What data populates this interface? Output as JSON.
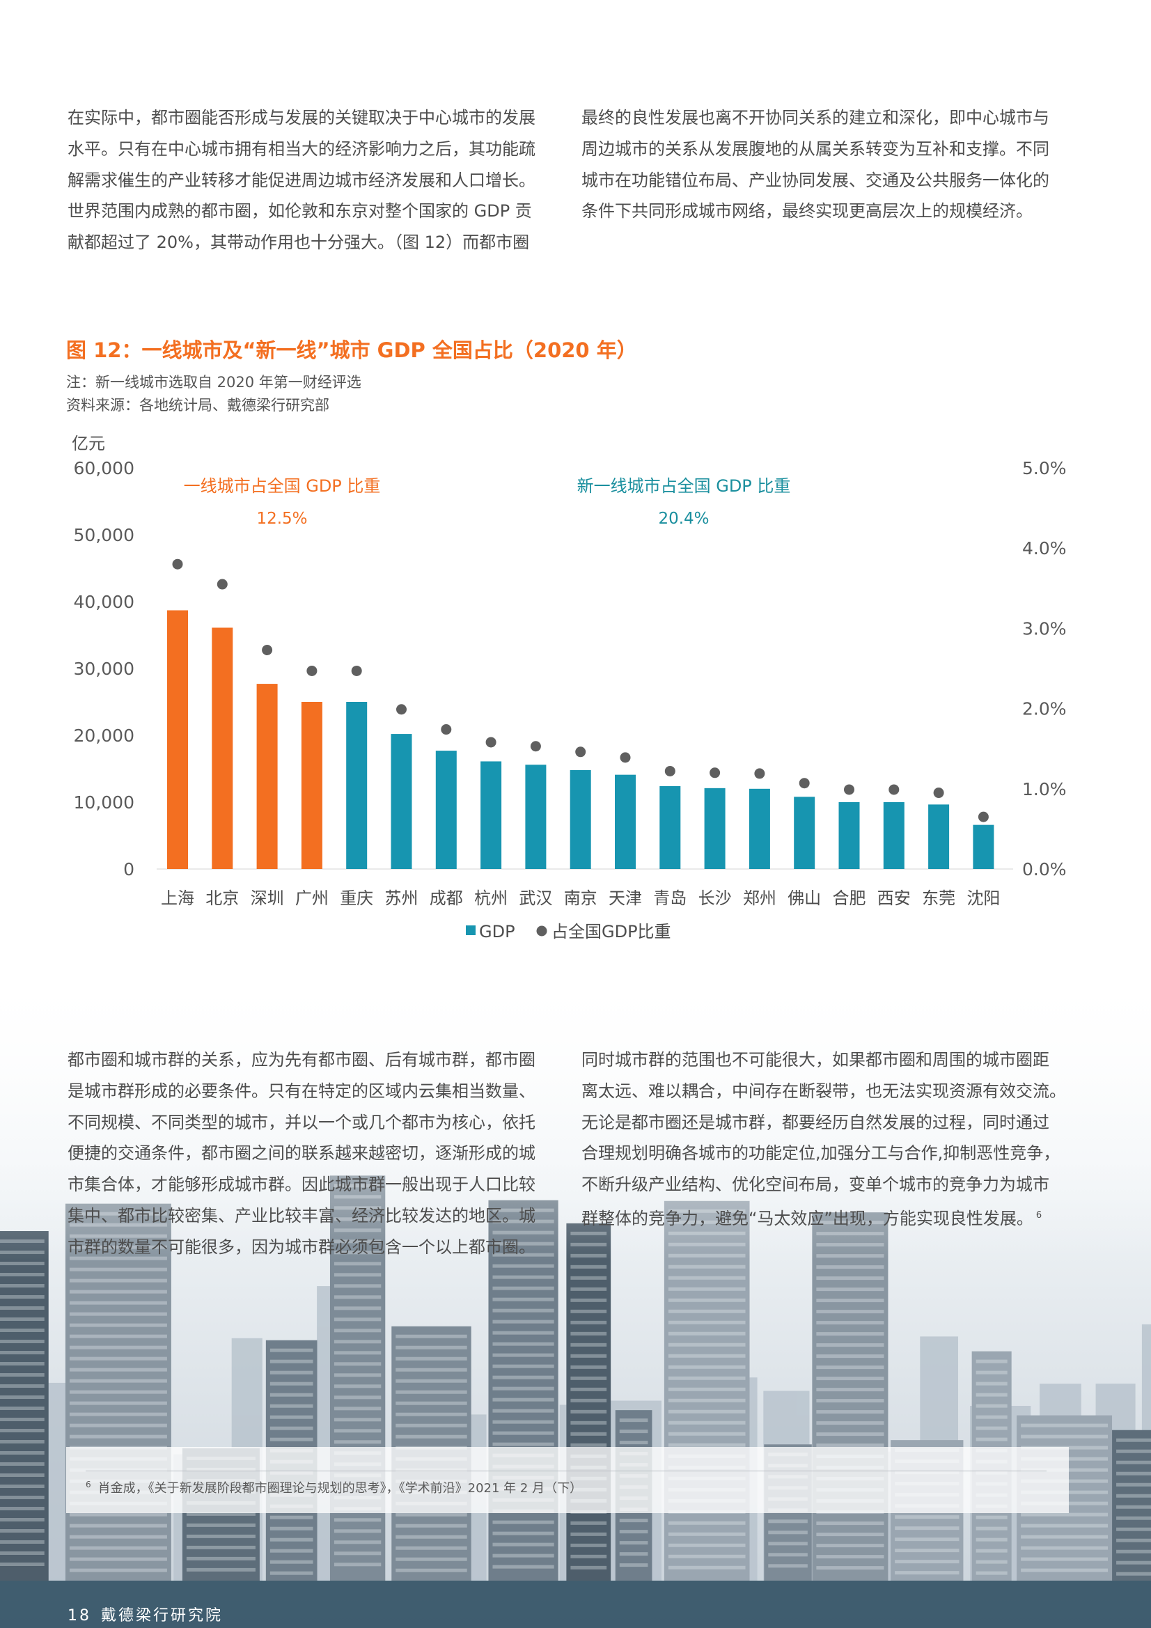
{
  "paragraphs": {
    "p1": [
      "在实际中，都市圈能否形成与发展的关键取决于中心城市的发展",
      "水平。只有在中心城市拥有相当大的经济影响力之后，其功能疏",
      "解需求催生的产业转移才能促进周边城市经济发展和人口增长。",
      "世界范围内成熟的都市圈，如伦敦和东京对整个国家的 GDP 贡",
      "献都超过了 20%，其带动作用也十分强大。（图 12）而都市圈"
    ],
    "p2": [
      "最终的良性发展也离不开协同关系的建立和深化，即中心城市与",
      "周边城市的关系从发展腹地的从属关系转变为互补和支撑。不同",
      "城市在功能错位布局、产业协同发展、交通及公共服务一体化的",
      "条件下共同形成城市网络，最终实现更高层次上的规模经济。"
    ],
    "p3": [
      "都市圈和城市群的关系，应为先有都市圈、后有城市群，都市圈",
      "是城市群形成的必要条件。只有在特定的区域内云集相当数量、",
      "不同规模、不同类型的城市，并以一个或几个都市为核心，依托",
      "便捷的交通条件，都市圈之间的联系越来越密切，逐渐形成的城",
      "市集合体，才能够形成城市群。因此城市群一般出现于人口比较",
      "集中、都市比较密集、产业比较丰富、经济比较发达的地区。城",
      "市群的数量不可能很多，因为城市群必须包含一个以上都市圈。"
    ],
    "p4": [
      "同时城市群的范围也不可能很大，如果都市圈和周围的城市圈距",
      "离太远、难以耦合，中间存在断裂带，也无法实现资源有效交流。",
      "无论是都市圈还是城市群，都要经历自然发展的过程，同时通过",
      "合理规划明确各城市的功能定位,加强分工与合作,抑制恶性竞争，",
      "不断升级产业结构、优化空间布局，变单个城市的竞争力为城市",
      "群整体的竞争力，避免“马太效应”出现，方能实现良性发展。"
    ],
    "p4_footnote_ref": "6"
  },
  "figure": {
    "title": "图 12：一线城市及“新一线”城市 GDP 全国占比（2020 年）",
    "note": "注：新一线城市选取自 2020 年第一财经评选",
    "source": "资料来源：各地统计局、戴德梁行研究部"
  },
  "chart_data": {
    "type": "bar",
    "categories": [
      "上海",
      "北京",
      "深圳",
      "广州",
      "重庆",
      "苏州",
      "成都",
      "杭州",
      "武汉",
      "南京",
      "天津",
      "青岛",
      "长沙",
      "郑州",
      "佛山",
      "合肥",
      "西安",
      "东莞",
      "沈阳"
    ],
    "tier": [
      "first",
      "first",
      "first",
      "first",
      "new",
      "new",
      "new",
      "new",
      "new",
      "new",
      "new",
      "new",
      "new",
      "new",
      "new",
      "new",
      "new",
      "new",
      "new"
    ],
    "series": [
      {
        "name": "GDP",
        "axis": "left",
        "kind": "bar",
        "values": [
          38700,
          36100,
          27700,
          25000,
          25000,
          20200,
          17700,
          16100,
          15600,
          14800,
          14100,
          12400,
          12100,
          12000,
          10800,
          10000,
          10000,
          9650,
          6600
        ]
      },
      {
        "name": "占全国GDP比重",
        "axis": "right",
        "kind": "dot",
        "values": [
          3.8,
          3.55,
          2.73,
          2.47,
          2.47,
          1.99,
          1.74,
          1.58,
          1.53,
          1.46,
          1.39,
          1.22,
          1.2,
          1.19,
          1.07,
          0.99,
          0.99,
          0.95,
          0.65
        ]
      }
    ],
    "ylabel": "亿元",
    "ylim": [
      0,
      60000
    ],
    "yticks": [
      "60,000",
      "50,000",
      "40,000",
      "30,000",
      "20,000",
      "10,000",
      "0"
    ],
    "y2lim": [
      0,
      5
    ],
    "y2ticks": [
      "5.0%",
      "4.0%",
      "3.0%",
      "2.0%",
      "1.0%",
      "0.0%"
    ],
    "annotations": [
      {
        "label": "一线城市占全国 GDP 比重",
        "value": "12.5%",
        "color": "#f36f21"
      },
      {
        "label": "新一线城市占全国 GDP 比重",
        "value": "20.4%",
        "color": "#1a8f9e"
      }
    ],
    "legend": {
      "position": "bottom",
      "items": [
        "GDP",
        "占全国GDP比重"
      ]
    },
    "colors": {
      "first_tier": "#f36f21",
      "new_tier": "#1795b0",
      "dots": "#5f5f5f"
    },
    "grid": false
  },
  "footnote": {
    "number": "6",
    "text": "肖金成，《关于新发展阶段都市圈理论与规划的思考》，《学术前沿》2021 年 2 月（下）"
  },
  "footer": {
    "page_number": "18",
    "org": "戴德梁行研究院"
  }
}
